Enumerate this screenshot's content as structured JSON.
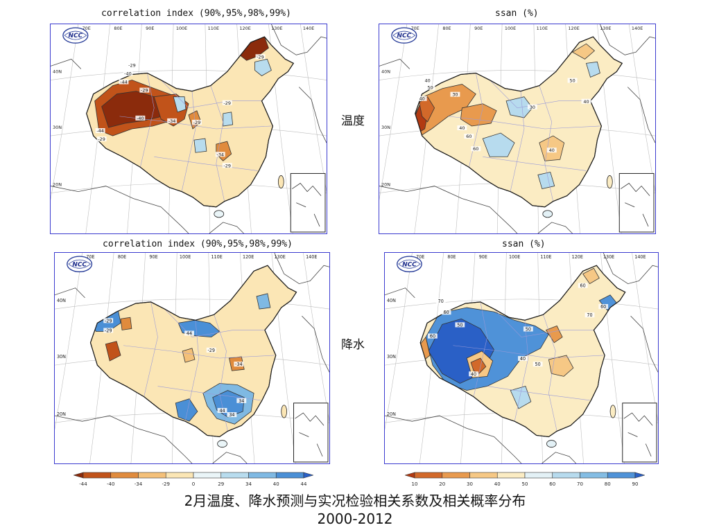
{
  "panels": [
    {
      "id": "temp-corr",
      "title": "correlation index (90%,95%,98%,99%)",
      "palette": "diverging"
    },
    {
      "id": "temp-ssan",
      "title": "ssan (%)",
      "palette": "sequential"
    },
    {
      "id": "prec-corr",
      "title": "correlation index (90%,95%,98%,99%)",
      "palette": "diverging"
    },
    {
      "id": "prec-ssan",
      "title": "ssan (%)",
      "palette": "sequential"
    }
  ],
  "row_labels": {
    "temperature": "温度",
    "precipitation": "降水"
  },
  "map_axes": {
    "lon_labels": [
      "70E",
      "80E",
      "90E",
      "100E",
      "110E",
      "120E",
      "130E",
      "140E"
    ],
    "lat_labels": [
      "40N",
      "30N",
      "20N"
    ],
    "logo_text": "NCC"
  },
  "colorbars": {
    "correlation": {
      "ticks": [
        "-44",
        "-40",
        "-34",
        "-29",
        "0",
        "29",
        "34",
        "40",
        "44"
      ],
      "colors": [
        "#8b2b0c",
        "#c1531a",
        "#e08b3d",
        "#f4c079",
        "#fbe6b5",
        "#eaf5f8",
        "#b8dcee",
        "#7fb9e3",
        "#4a8fd6",
        "#2a60c6"
      ]
    },
    "ssan": {
      "ticks": [
        "10",
        "20",
        "30",
        "40",
        "50",
        "60",
        "70",
        "80",
        "90"
      ],
      "colors": [
        "#b23a12",
        "#d2692a",
        "#e89a4e",
        "#f6c885",
        "#fbecc3",
        "#e3f1f6",
        "#b7dbee",
        "#84bde4",
        "#4f92d8",
        "#2a60c6"
      ]
    }
  },
  "contour_labels": {
    "temp-corr": [
      "-29",
      "-40",
      "-44",
      "-29",
      "-44",
      "-29",
      "-40",
      "-34",
      "-29",
      "-29",
      "-34",
      "-29",
      "-29"
    ],
    "temp-ssan": [
      "40",
      "50",
      "40",
      "30",
      "60",
      "40",
      "60",
      "40",
      "50",
      "40",
      "30"
    ],
    "prec-corr": [
      "-29",
      "-29",
      "44",
      "-29",
      "-34",
      "34",
      "44",
      "34"
    ],
    "prec-ssan": [
      "70",
      "60",
      "50",
      "40",
      "60",
      "50",
      "40",
      "50",
      "60",
      "70",
      "60"
    ]
  },
  "caption": {
    "line1": "2月温度、降水预测与实况检验相关系数及相关概率分布",
    "line2": "2000-2012"
  }
}
